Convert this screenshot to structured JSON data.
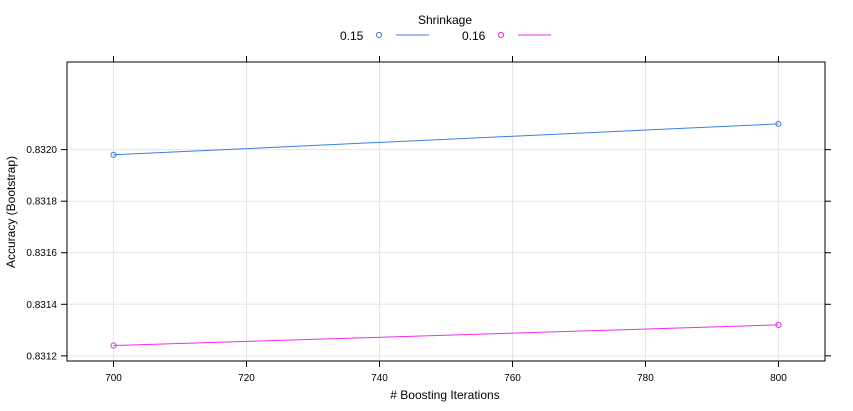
{
  "chart_data": {
    "type": "line",
    "xlabel": "# Boosting Iterations",
    "ylabel": "Accuracy (Bootstrap)",
    "legend": {
      "title": "Shrinkage",
      "placement": "top-center"
    },
    "xlim": [
      693,
      807
    ],
    "ylim": [
      0.83118,
      0.83234
    ],
    "x_ticks": [
      700,
      720,
      740,
      760,
      780,
      800
    ],
    "y_ticks": [
      0.8312,
      0.8314,
      0.8316,
      0.8318,
      0.832
    ],
    "x_tick_labels": [
      "700",
      "720",
      "740",
      "760",
      "780",
      "800"
    ],
    "y_tick_labels": [
      "0.8312",
      "0.8314",
      "0.8316",
      "0.8318",
      "0.8320"
    ],
    "grid": true,
    "series": [
      {
        "name": "0.15",
        "color": "#3b7fe0",
        "x": [
          700,
          800
        ],
        "y": [
          0.83198,
          0.8321
        ]
      },
      {
        "name": "0.16",
        "color": "#ee2df0",
        "x": [
          700,
          800
        ],
        "y": [
          0.83124,
          0.83132
        ]
      }
    ]
  }
}
